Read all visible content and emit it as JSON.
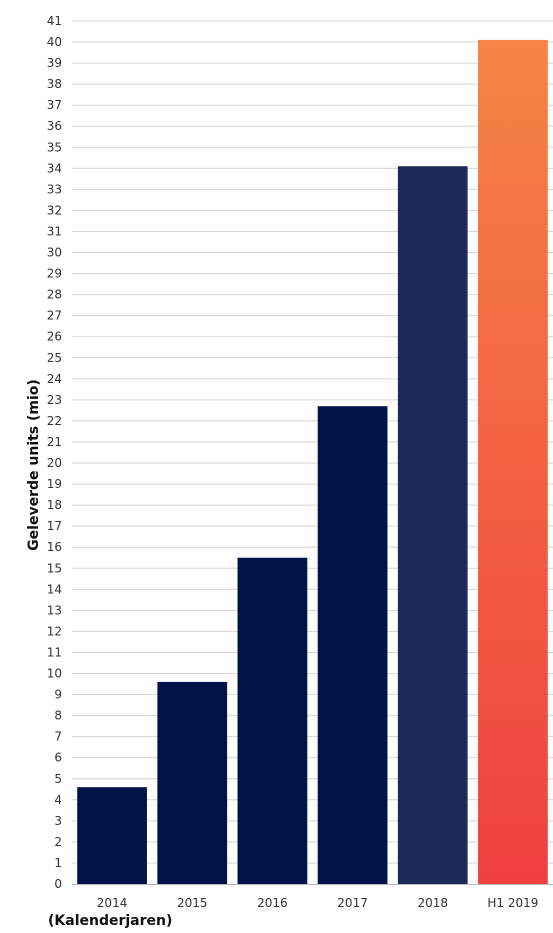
{
  "chart_data": {
    "type": "bar",
    "title": "",
    "xlabel": "(Kalenderjaren)",
    "ylabel": "Geleverde units (mio)",
    "categories": [
      "2014",
      "2015",
      "2016",
      "2017",
      "2018",
      "H1 2019"
    ],
    "values": [
      4.6,
      9.6,
      15.5,
      22.7,
      34.1,
      40.1
    ],
    "bar_colors": [
      "#021348",
      "#021348",
      "#021348",
      "#021348",
      "#1b2a58",
      "gradient:#f58446-#ef4040"
    ],
    "ylim": [
      0,
      41
    ],
    "y_tick_step": 1,
    "grid": true,
    "legend": "none"
  }
}
